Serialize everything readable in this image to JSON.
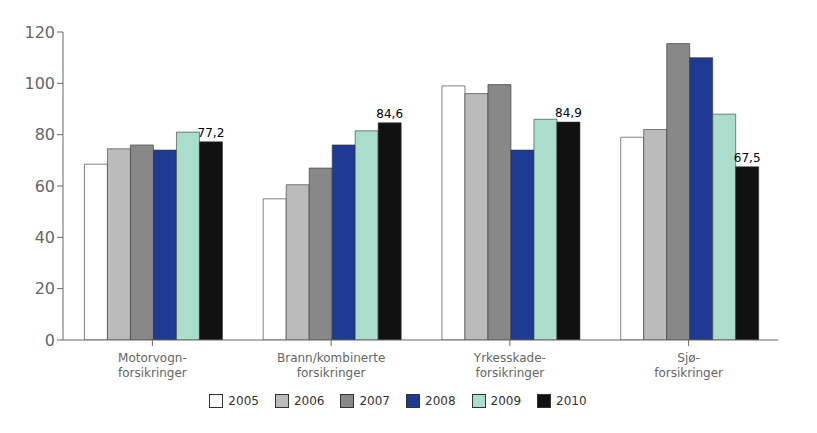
{
  "chart_data": {
    "type": "bar",
    "categories": [
      "Motorvogn-\nforsikringer",
      "Brann/kombinerte\nforsikringer",
      "Yrkesskade-\nforsikringer",
      "Sjø-\nforsikringer"
    ],
    "series": [
      {
        "name": "2005",
        "color": "#FFFFFF",
        "values": [
          68.5,
          55.0,
          99.0,
          79.0
        ]
      },
      {
        "name": "2006",
        "color": "#BBBBBB",
        "values": [
          74.5,
          60.5,
          96.0,
          82.0
        ]
      },
      {
        "name": "2007",
        "color": "#888888",
        "values": [
          76.0,
          67.0,
          99.5,
          115.5
        ]
      },
      {
        "name": "2008",
        "color": "#1F3A93",
        "values": [
          74.0,
          76.0,
          74.0,
          110.0
        ]
      },
      {
        "name": "2009",
        "color": "#AADDCC",
        "values": [
          81.0,
          81.5,
          86.0,
          88.0
        ]
      },
      {
        "name": "2010",
        "color": "#111111",
        "values": [
          77.2,
          84.6,
          84.9,
          67.5
        ],
        "data_labels": true,
        "value_labels": [
          "77,2",
          "84,6",
          "84,9",
          "67,5"
        ]
      }
    ],
    "ylim": [
      0,
      120
    ],
    "yticks": [
      0,
      20,
      40,
      60,
      80,
      100,
      120
    ],
    "grid": false,
    "legend": "bottom"
  }
}
